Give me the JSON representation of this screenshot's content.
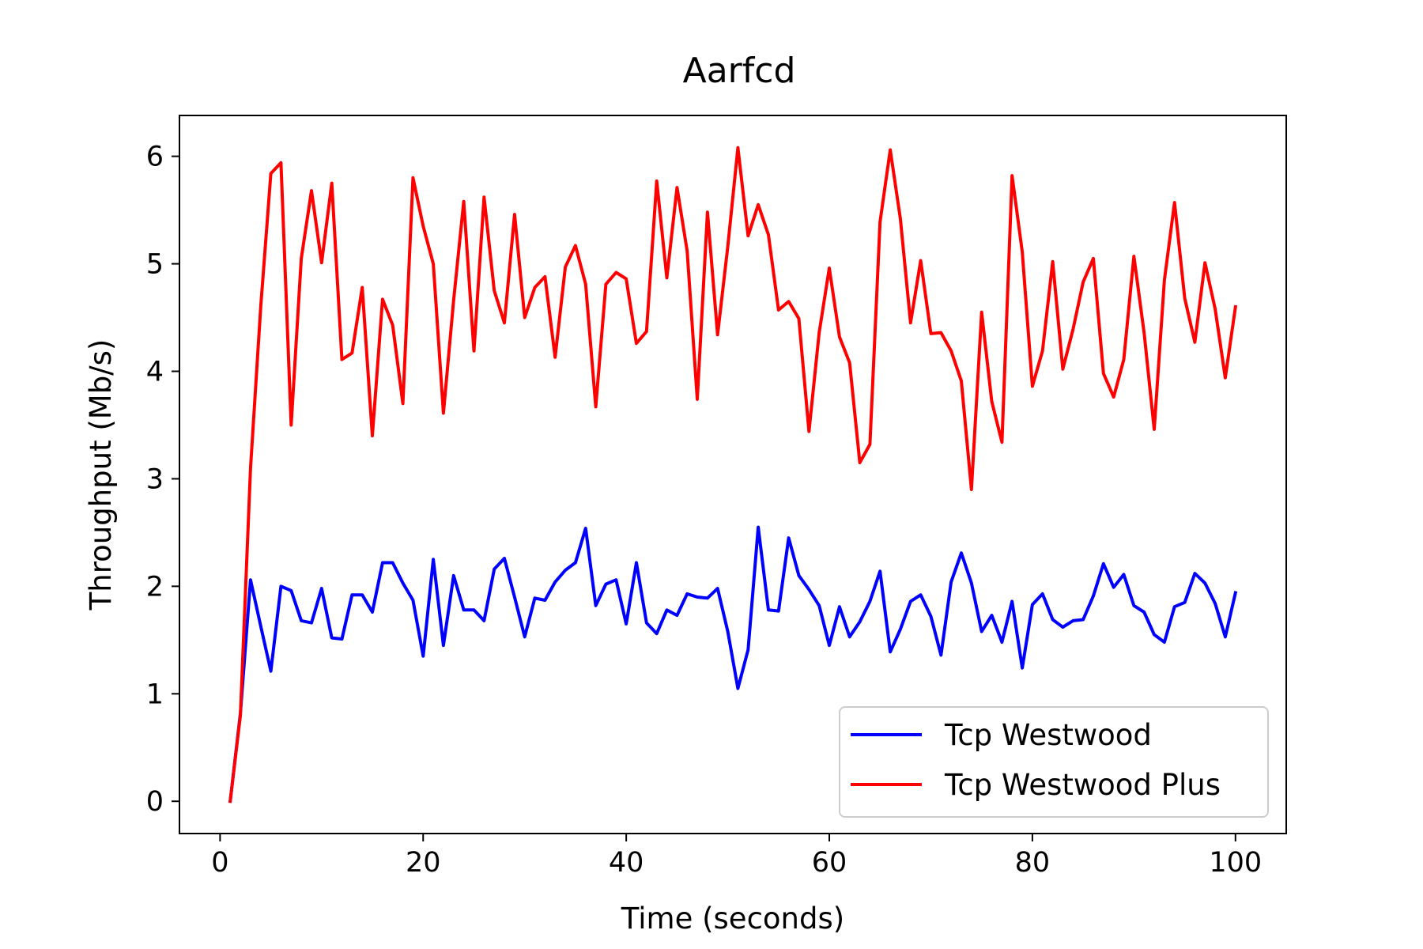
{
  "chart_data": {
    "type": "line",
    "title": "Aarfcd",
    "xlabel": "Time (seconds)",
    "ylabel": "Throughput (Mb/s)",
    "xlim": [
      -4,
      105
    ],
    "ylim": [
      -0.3,
      6.38
    ],
    "xticks": [
      0,
      20,
      40,
      60,
      80,
      100
    ],
    "yticks": [
      0,
      1,
      2,
      3,
      4,
      5,
      6
    ],
    "grid": false,
    "legend_position": "lower-right",
    "x": [
      1,
      2,
      3,
      4,
      5,
      6,
      7,
      8,
      9,
      10,
      11,
      12,
      13,
      14,
      15,
      16,
      17,
      18,
      19,
      20,
      21,
      22,
      23,
      24,
      25,
      26,
      27,
      28,
      29,
      30,
      31,
      32,
      33,
      34,
      35,
      36,
      37,
      38,
      39,
      40,
      41,
      42,
      43,
      44,
      45,
      46,
      47,
      48,
      49,
      50,
      51,
      52,
      53,
      54,
      55,
      56,
      57,
      58,
      59,
      60,
      61,
      62,
      63,
      64,
      65,
      66,
      67,
      68,
      69,
      70,
      71,
      72,
      73,
      74,
      75,
      76,
      77,
      78,
      79,
      80,
      81,
      82,
      83,
      84,
      85,
      86,
      87,
      88,
      89,
      90,
      91,
      92,
      93,
      94,
      95,
      96,
      97,
      98,
      99,
      100
    ],
    "series": [
      {
        "name": "Tcp Westwood",
        "color": "#0000ff",
        "values": [
          0,
          0.82,
          2.06,
          1.63,
          1.21,
          2,
          1.96,
          1.68,
          1.66,
          1.98,
          1.52,
          1.51,
          1.92,
          1.92,
          1.76,
          2.22,
          2.22,
          2.03,
          1.87,
          1.35,
          2.25,
          1.45,
          2.1,
          1.78,
          1.78,
          1.68,
          2.16,
          2.26,
          1.9,
          1.53,
          1.89,
          1.87,
          2.04,
          2.15,
          2.22,
          2.54,
          1.82,
          2.02,
          2.06,
          1.65,
          2.22,
          1.66,
          1.56,
          1.78,
          1.73,
          1.93,
          1.9,
          1.89,
          1.98,
          1.58,
          1.05,
          1.41,
          2.55,
          1.78,
          1.77,
          2.45,
          2.1,
          1.97,
          1.82,
          1.45,
          1.81,
          1.53,
          1.67,
          1.86,
          2.14,
          1.39,
          1.6,
          1.86,
          1.92,
          1.72,
          1.36,
          2.04,
          2.31,
          2.03,
          1.58,
          1.73,
          1.48,
          1.86,
          1.24,
          1.83,
          1.93,
          1.69,
          1.62,
          1.68,
          1.69,
          1.91,
          2.21,
          1.99,
          2.11,
          1.82,
          1.76,
          1.55,
          1.48,
          1.81,
          1.85,
          2.12,
          2.03,
          1.84,
          1.53,
          1.94
        ]
      },
      {
        "name": "Tcp Westwood Plus",
        "color": "#ff0000",
        "values": [
          0,
          0.8,
          3.1,
          4.6,
          5.84,
          5.94,
          3.5,
          5.05,
          5.68,
          5.01,
          5.75,
          4.11,
          4.17,
          4.78,
          3.4,
          4.67,
          4.43,
          3.7,
          5.8,
          5.35,
          5,
          3.61,
          4.66,
          5.58,
          4.19,
          5.62,
          4.75,
          4.45,
          5.46,
          4.5,
          4.78,
          4.88,
          4.13,
          4.97,
          5.17,
          4.81,
          3.67,
          4.81,
          4.92,
          4.86,
          4.26,
          4.37,
          5.77,
          4.87,
          5.71,
          5.12,
          3.74,
          5.48,
          4.34,
          5.16,
          6.08,
          5.26,
          5.55,
          5.27,
          4.57,
          4.65,
          4.49,
          3.44,
          4.36,
          4.96,
          4.32,
          4.08,
          3.15,
          3.32,
          5.39,
          6.06,
          5.42,
          4.45,
          5.03,
          4.35,
          4.36,
          4.19,
          3.91,
          2.9,
          4.55,
          3.72,
          3.34,
          5.82,
          5.11,
          3.86,
          4.19,
          5.02,
          4.02,
          4.39,
          4.83,
          5.05,
          3.98,
          3.76,
          4.11,
          5.07,
          4.36,
          3.46,
          4.85,
          5.57,
          4.68,
          4.27,
          5.01,
          4.58,
          3.94,
          4.6
        ]
      }
    ]
  }
}
